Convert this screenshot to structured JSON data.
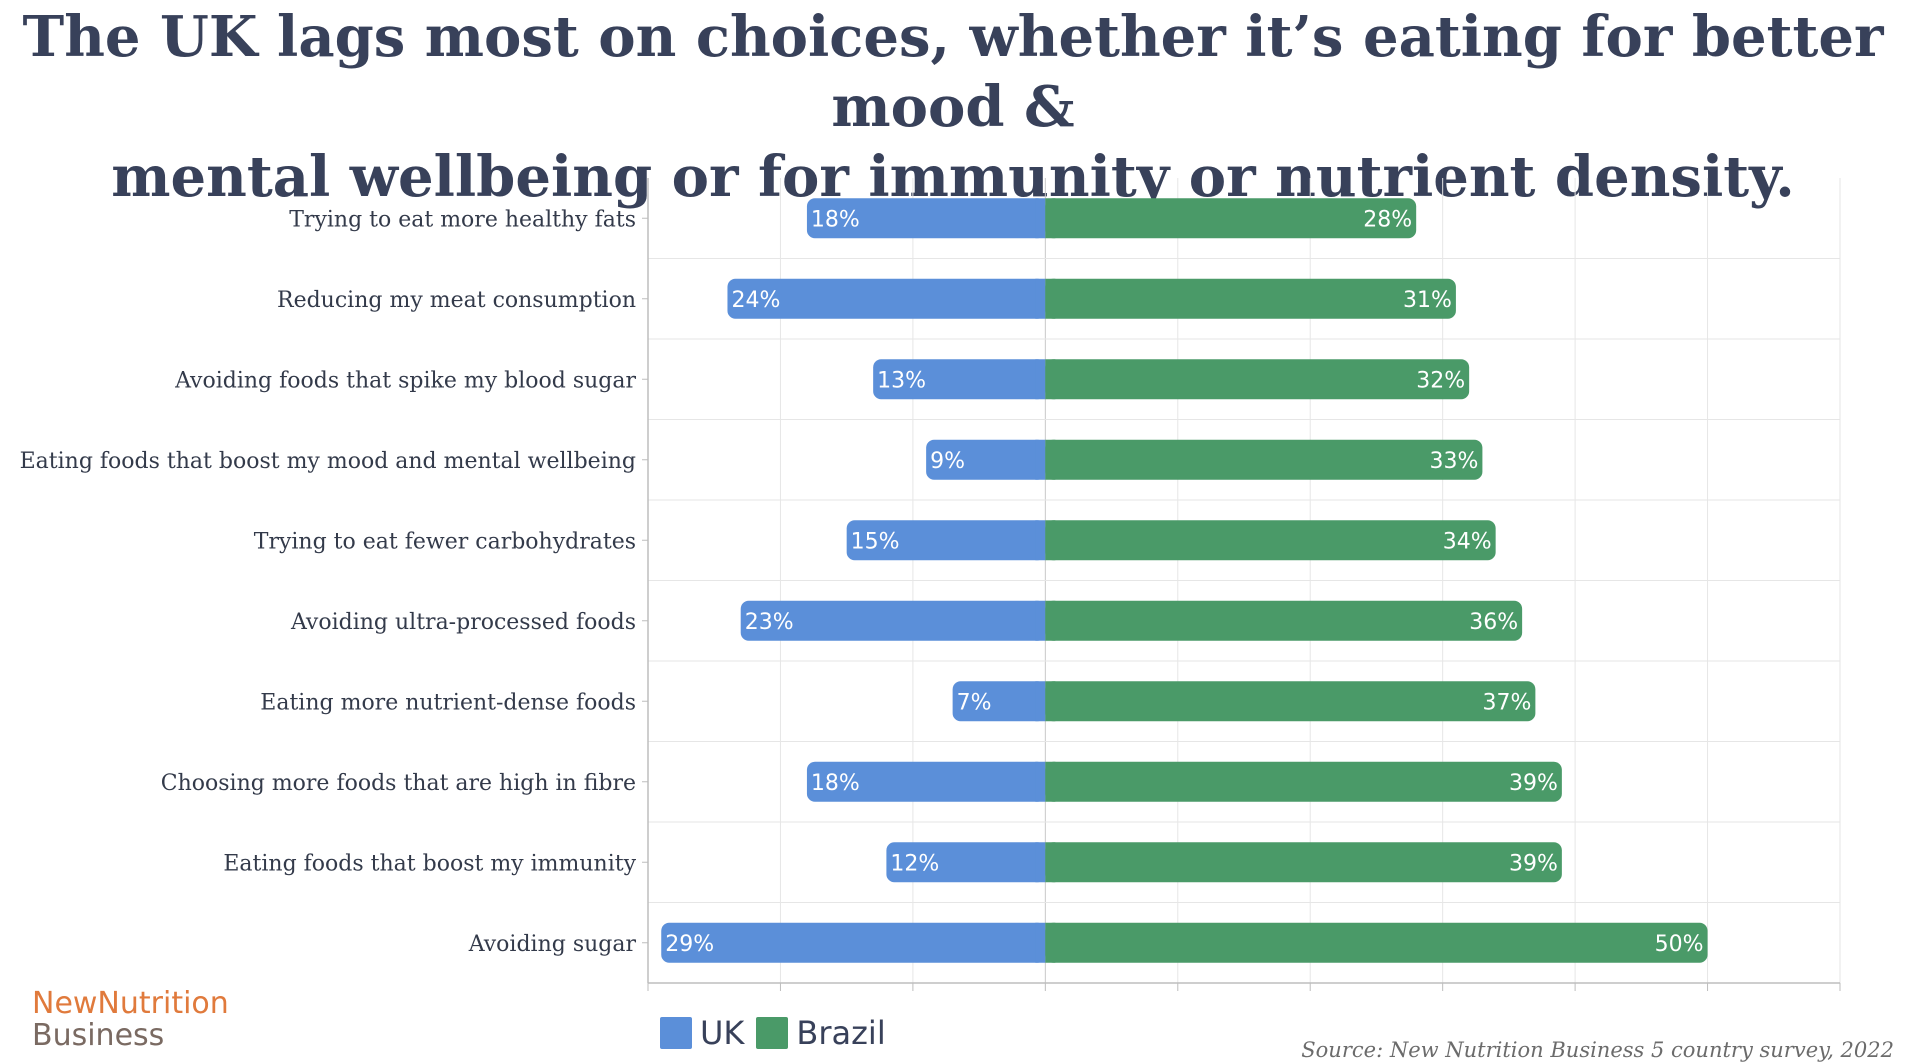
{
  "title_lines": [
    "The UK lags most on choices, whether it’s eating for better mood &",
    "mental wellbeing or for immunity or nutrient density."
  ],
  "colors": {
    "uk": "#5b8fd9",
    "brazil": "#4a9a68",
    "grid": "#e6e6e6",
    "axis": "#bdbdbd"
  },
  "chart_data": {
    "type": "bar",
    "orientation": "horizontal-diverging",
    "categories": [
      "Trying to eat more healthy fats",
      "Reducing my meat consumption",
      "Avoiding foods that spike my blood sugar",
      "Eating foods that boost my mood and mental wellbeing",
      "Trying to eat fewer carbohydrates",
      "Avoiding ultra-processed foods",
      "Eating more nutrient-dense foods",
      "Choosing more foods that are high in fibre",
      "Eating foods that boost my immunity",
      "Avoiding sugar"
    ],
    "series": [
      {
        "name": "UK",
        "values": [
          18,
          24,
          13,
          9,
          15,
          23,
          7,
          18,
          12,
          29
        ],
        "labels": [
          "18%",
          "24%",
          "13%",
          "9%",
          "15%",
          "23%",
          "7%",
          "18%",
          "12%",
          "29%"
        ]
      },
      {
        "name": "Brazil",
        "values": [
          28,
          31,
          32,
          33,
          34,
          36,
          37,
          39,
          39,
          50
        ],
        "labels": [
          "28%",
          "31%",
          "32%",
          "33%",
          "34%",
          "36%",
          "37%",
          "39%",
          "39%",
          "50%"
        ]
      }
    ],
    "xlim": [
      -30,
      60
    ],
    "grid": true,
    "legend_position": "bottom-left"
  },
  "legend": [
    {
      "label": "UK",
      "color": "#5b8fd9"
    },
    {
      "label": "Brazil",
      "color": "#4a9a68"
    }
  ],
  "logo": {
    "line1": "NewNutrition",
    "line2": "Business"
  },
  "source": "Source: New Nutrition Business 5 country survey, 2022"
}
